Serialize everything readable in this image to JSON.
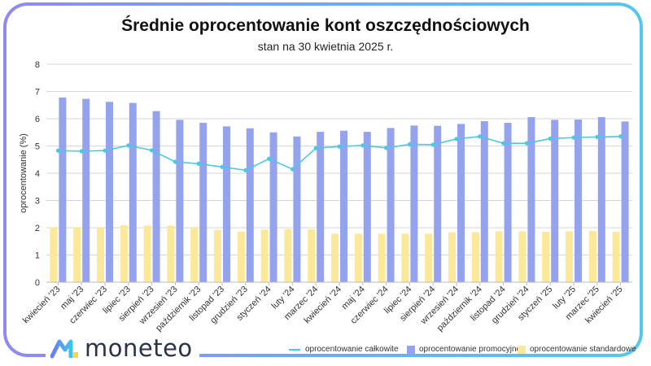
{
  "title": "Średnie oprocentowanie kont oszczędnościowych",
  "subtitle": "stan na 30 kwietnia 2025 r.",
  "logo": {
    "text": "moneteo"
  },
  "colors": {
    "promo": "#95a3ef",
    "standard": "#fce89a",
    "total": "#4ec6e6",
    "grid": "#d6d6d6",
    "text": "#333333"
  },
  "chart_data": {
    "type": "bar",
    "title": "Średnie oprocentowanie kont oszczędnościowych",
    "subtitle": "stan na 30 kwietnia 2025 r.",
    "xlabel": "",
    "ylabel": "oprocentowanie (%)",
    "ylim": [
      0,
      8
    ],
    "yticks": [
      "0",
      "1",
      "2",
      "3",
      "4",
      "5",
      "6",
      "7",
      "8"
    ],
    "grid": true,
    "legend_position": "bottom-right",
    "categories": [
      "kwiecień '23",
      "maj '23",
      "czerwiec '23",
      "lipiec '23",
      "sierpień '23",
      "wrzesień '23",
      "październik '23",
      "listopad '23",
      "grudzień '23",
      "styczeń '24",
      "luty '24",
      "marzec '24",
      "kwiecień '24",
      "maj '24",
      "czerwiec '24",
      "lipiec '24",
      "sierpień '24",
      "wrzesień '24",
      "październik '24",
      "listopad '24",
      "grudzień '24",
      "styczeń '25",
      "luty '25",
      "marzec '25",
      "kwiecień '25"
    ],
    "series": [
      {
        "name": "oprocentowanie całkowite",
        "kind": "line",
        "values": [
          4.83,
          4.81,
          4.83,
          5.02,
          4.84,
          4.42,
          4.35,
          4.23,
          4.11,
          4.53,
          4.15,
          4.92,
          4.98,
          5.02,
          4.93,
          5.06,
          5.05,
          5.26,
          5.35,
          5.1,
          5.1,
          5.27,
          5.31,
          5.33,
          5.35
        ]
      },
      {
        "name": "oprocentowanie promocyjne",
        "kind": "bar",
        "values": [
          6.78,
          6.73,
          6.62,
          6.58,
          6.28,
          5.96,
          5.85,
          5.72,
          5.65,
          5.5,
          5.35,
          5.52,
          5.56,
          5.52,
          5.66,
          5.75,
          5.74,
          5.81,
          5.91,
          5.85,
          6.06,
          5.96,
          5.97,
          6.06,
          5.9
        ]
      },
      {
        "name": "oprocentowanie standardowe",
        "kind": "bar",
        "values": [
          2.02,
          2.02,
          2.02,
          2.09,
          2.08,
          2.08,
          2.0,
          1.92,
          1.86,
          1.93,
          1.95,
          1.95,
          1.78,
          1.78,
          1.78,
          1.78,
          1.78,
          1.83,
          1.84,
          1.87,
          1.87,
          1.85,
          1.87,
          1.88,
          1.85
        ]
      }
    ]
  }
}
